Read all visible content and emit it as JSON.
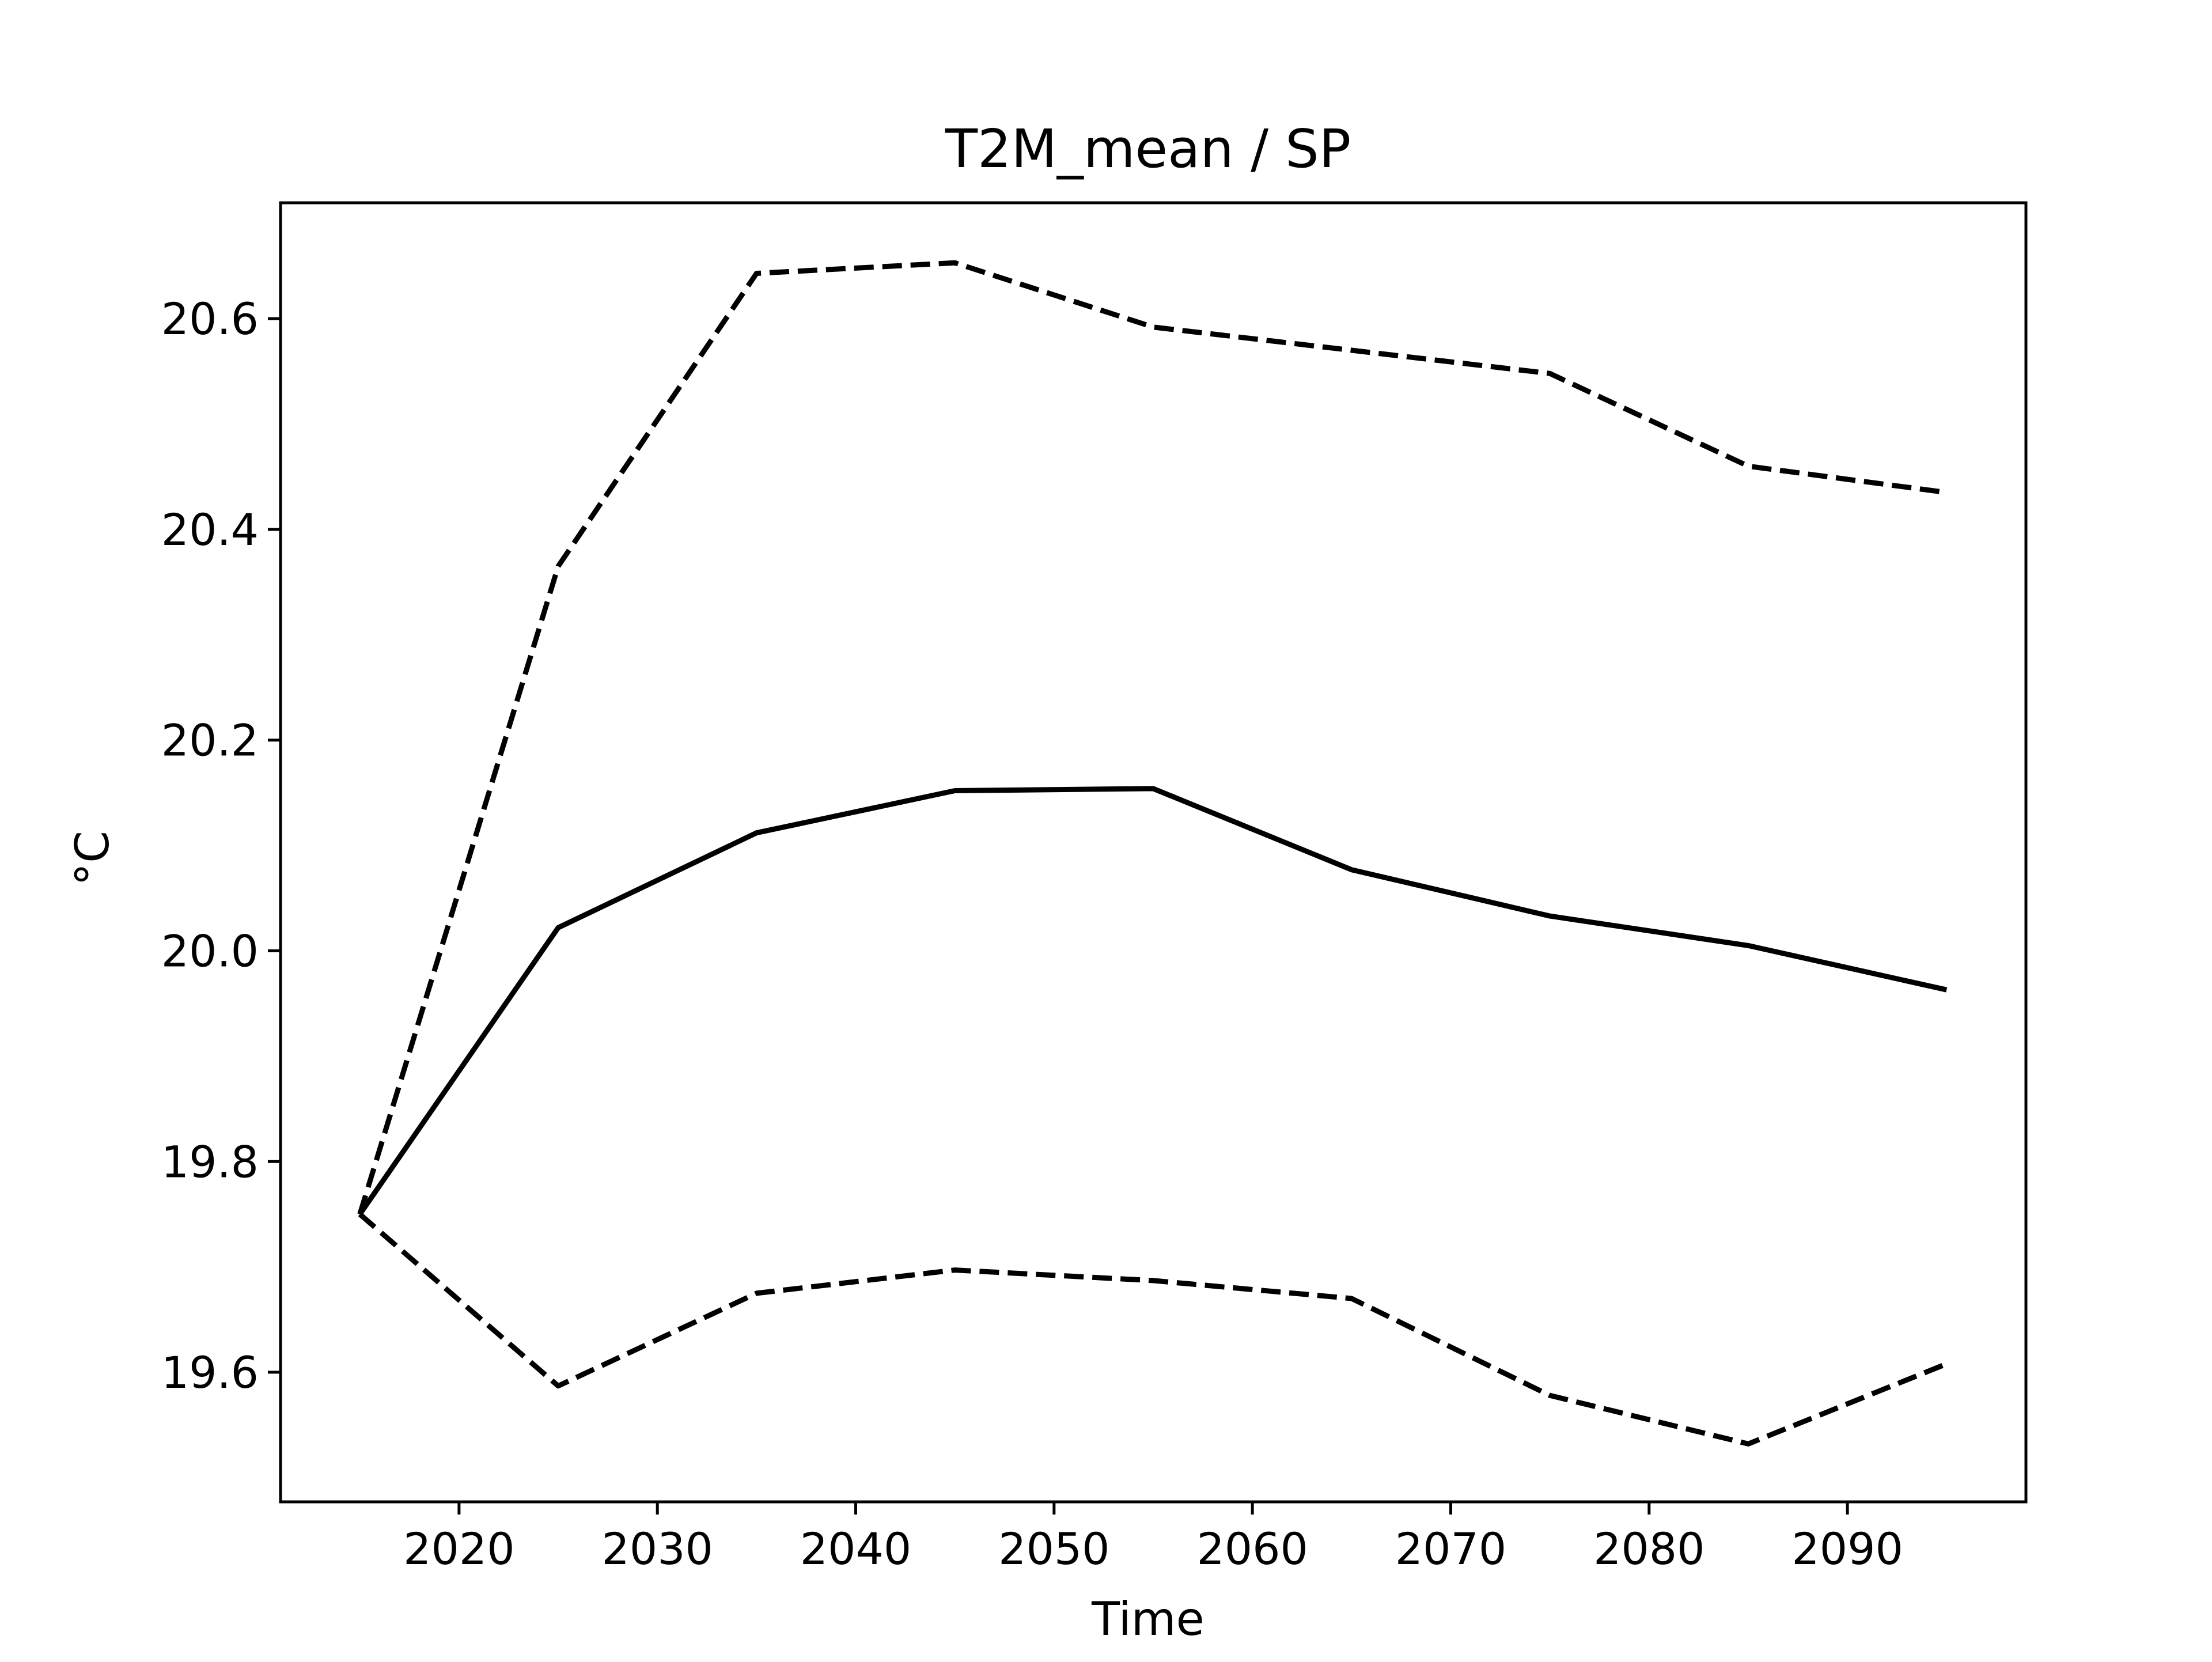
{
  "chart_data": {
    "type": "line",
    "title": "T2M_mean / SP",
    "xlabel": "Time",
    "ylabel": "°C",
    "xlim": [
      2011,
      2099
    ],
    "ylim": [
      19.477,
      20.71
    ],
    "x_ticks": [
      2020,
      2030,
      2040,
      2050,
      2060,
      2070,
      2080,
      2090
    ],
    "y_ticks": [
      19.6,
      19.8,
      20.0,
      20.2,
      20.4,
      20.6
    ],
    "y_tick_labels": [
      "19.6",
      "19.8",
      "20.0",
      "20.2",
      "20.4",
      "20.6"
    ],
    "grid": false,
    "x": [
      2015,
      2025,
      2035,
      2045,
      2055,
      2065,
      2075,
      2085,
      2095
    ],
    "series": [
      {
        "style": "solid",
        "color": "#000000",
        "values": [
          19.75,
          20.022,
          20.112,
          20.152,
          20.154,
          20.077,
          20.033,
          20.005,
          19.963
        ]
      },
      {
        "style": "dashed",
        "color": "#000000",
        "values": [
          19.75,
          20.365,
          20.643,
          20.653,
          20.592,
          20.57,
          20.548,
          20.46,
          20.435
        ]
      },
      {
        "style": "dashed",
        "color": "#000000",
        "values": [
          19.75,
          19.587,
          19.675,
          19.697,
          19.687,
          19.67,
          19.578,
          19.532,
          19.608
        ]
      }
    ]
  }
}
